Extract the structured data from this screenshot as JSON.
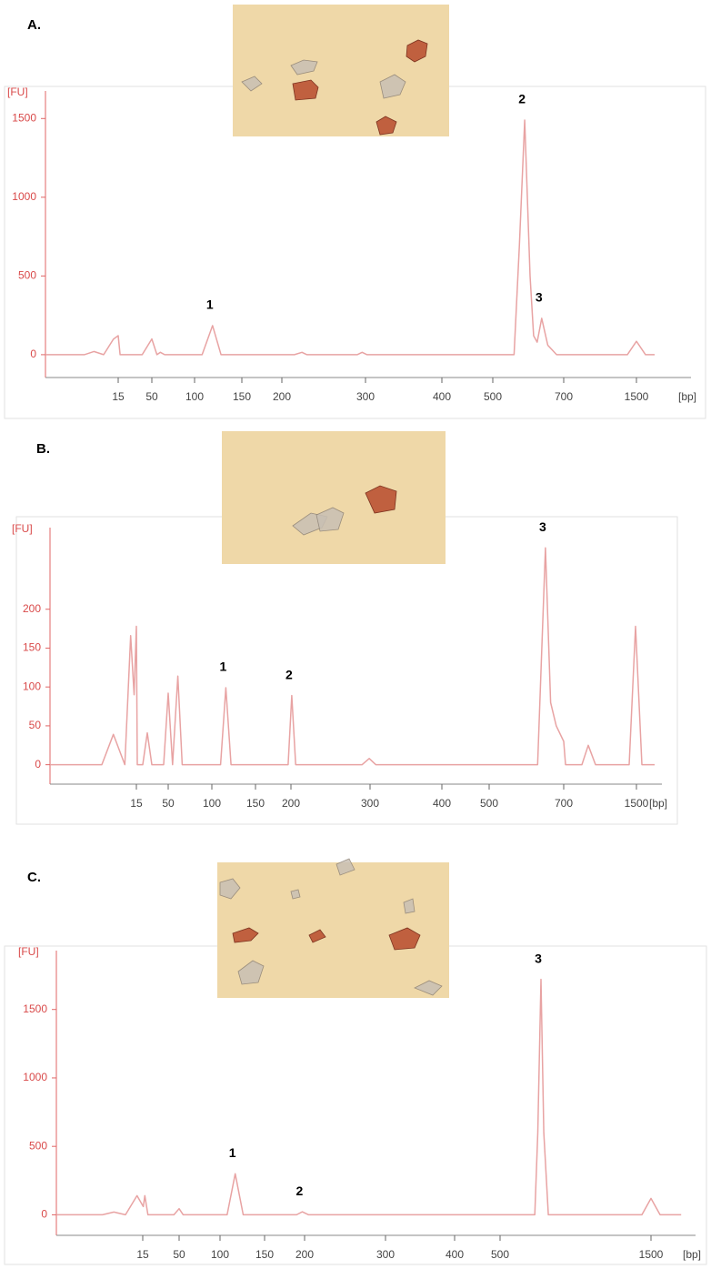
{
  "chart_data": [
    {
      "type": "line",
      "panel": "A.",
      "y_label": "[FU]",
      "x_label": "[bp]",
      "xticks": [
        15,
        50,
        100,
        150,
        200,
        300,
        400,
        500,
        700,
        1500
      ],
      "ylim": [
        -145,
        1675
      ],
      "yticks": [
        0,
        500,
        1000,
        1500
      ],
      "color": "#e8a3a3",
      "x": [
        0,
        8,
        10,
        12,
        14,
        15,
        17,
        40,
        50,
        56,
        60,
        65,
        108,
        119,
        128,
        215,
        224,
        230,
        290,
        296,
        302,
        560,
        575,
        590,
        605,
        615,
        625,
        638,
        655,
        680,
        1400,
        1500,
        1600,
        1700
      ],
      "values": [
        0,
        0,
        20,
        0,
        98,
        121,
        0,
        0,
        100,
        0,
        15,
        0,
        0,
        185,
        0,
        0,
        15,
        0,
        0,
        15,
        0,
        0,
        700,
        1490,
        500,
        120,
        80,
        231,
        60,
        0,
        0,
        85,
        0,
        0
      ],
      "annotations": [
        {
          "text": "1",
          "x": 119,
          "y": 185
        },
        {
          "text": "2",
          "x": 590,
          "y": 1490
        },
        {
          "text": "3",
          "x": 638,
          "y": 231
        }
      ]
    },
    {
      "type": "line",
      "panel": "B.",
      "y_label": "[FU]",
      "x_label": "[bp]",
      "xticks": [
        15,
        50,
        100,
        150,
        200,
        300,
        400,
        500,
        700,
        1500
      ],
      "ylim": [
        -25,
        305
      ],
      "yticks": [
        0,
        50,
        100,
        150,
        200
      ],
      "color": "#e8a3a3",
      "x": [
        0,
        9,
        11,
        13,
        14,
        14.6,
        15,
        16,
        22,
        27,
        32,
        45,
        50,
        55,
        61,
        66,
        110,
        116,
        122,
        196,
        201,
        206,
        290,
        299,
        308,
        630,
        651,
        665,
        680,
        700,
        720,
        900,
        970,
        1050,
        1420,
        1490,
        1560,
        1700
      ],
      "values": [
        0,
        0,
        39,
        0,
        166,
        90,
        178,
        0,
        0,
        41,
        0,
        0,
        92,
        0,
        114,
        0,
        0,
        99,
        0,
        0,
        89,
        0,
        0,
        8,
        0,
        0,
        279,
        80,
        50,
        30,
        0,
        0,
        25,
        0,
        0,
        178,
        0,
        0
      ],
      "annotations": [
        {
          "text": "1",
          "x": 116,
          "y": 99
        },
        {
          "text": "2",
          "x": 201,
          "y": 89
        },
        {
          "text": "3",
          "x": 651,
          "y": 279
        }
      ]
    },
    {
      "type": "line",
      "panel": "C.",
      "y_label": "[FU]",
      "x_label": "[bp]",
      "xticks": [
        15,
        50,
        100,
        150,
        200,
        300,
        400,
        500,
        1500
      ],
      "ylim": [
        -150,
        1930
      ],
      "yticks": [
        0,
        500,
        1000,
        1500
      ],
      "color": "#e8a3a3",
      "x": [
        0,
        8,
        10,
        12,
        14,
        15.5,
        17,
        20,
        45,
        50,
        55,
        108,
        117,
        126,
        190,
        197,
        205,
        730,
        750,
        771,
        790,
        820,
        1440,
        1500,
        1560,
        1700
      ],
      "values": [
        0,
        0,
        20,
        0,
        140,
        60,
        140,
        0,
        0,
        45,
        0,
        0,
        300,
        0,
        0,
        22,
        0,
        0,
        600,
        1720,
        600,
        0,
        0,
        120,
        0,
        0
      ],
      "annotations": [
        {
          "text": "1",
          "x": 117,
          "y": 300
        },
        {
          "text": "2",
          "x": 197,
          "y": 22
        },
        {
          "text": "3",
          "x": 771,
          "y": 1720
        }
      ]
    }
  ]
}
